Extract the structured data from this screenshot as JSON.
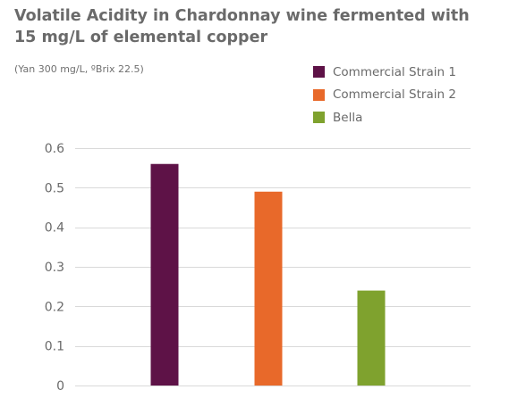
{
  "chart_data": {
    "type": "bar",
    "title": "Volatile Acidity in Chardonnay wine fermented with 15 mg/L of elemental copper",
    "subtitle": "(Yan 300 mg/L, ºBrix 22.5)",
    "xlabel": "",
    "ylabel": "",
    "ylim": [
      0,
      0.6
    ],
    "yticks": [
      0,
      0.1,
      0.2,
      0.3,
      0.4,
      0.5,
      0.6
    ],
    "grid": true,
    "legend_position": "top-right",
    "categories": [
      "Commercial Strain 1",
      "Commercial Strain 2",
      "Bella"
    ],
    "values": [
      0.56,
      0.49,
      0.24
    ],
    "colors": [
      "#5e1247",
      "#e8692a",
      "#7fa22e"
    ],
    "series": [
      {
        "name": "Commercial Strain 1",
        "value": 0.56,
        "color": "#5e1247"
      },
      {
        "name": "Commercial Strain 2",
        "value": 0.49,
        "color": "#e8692a"
      },
      {
        "name": "Bella",
        "value": 0.24,
        "color": "#7fa22e"
      }
    ]
  }
}
